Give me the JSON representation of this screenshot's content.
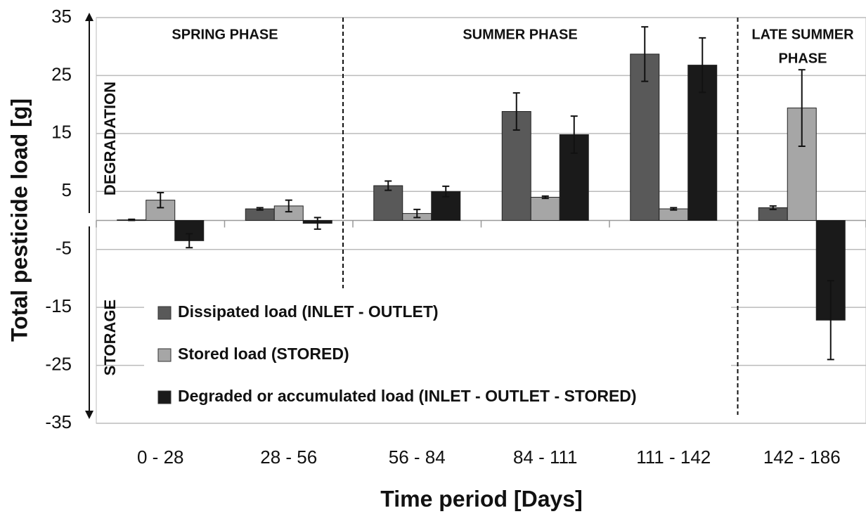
{
  "chart_data": {
    "type": "bar",
    "x_label": "Time period [Days]",
    "y_label": "Total pesticide load [g]",
    "categories": [
      "0 - 28",
      "28 - 56",
      "56 - 84",
      "84 - 111",
      "111  - 142",
      "142 - 186"
    ],
    "series": [
      {
        "name": "Dissipated load (INLET - OUTLET)",
        "color": "#595959",
        "values": [
          0.1,
          2,
          6,
          18.8,
          28.7,
          2.2
        ],
        "errors": [
          0.1,
          0.2,
          0.8,
          3.2,
          4.7,
          0.3
        ]
      },
      {
        "name": "Stored load (STORED)",
        "color": "#a6a6a6",
        "values": [
          3.5,
          2.5,
          1.2,
          4,
          2,
          19.4
        ],
        "errors": [
          1.3,
          1,
          0.7,
          0.2,
          0.2,
          6.6
        ]
      },
      {
        "name": "Degraded or accumulated load (INLET - OUTLET - STORED)",
        "color": "#1a1a1a",
        "values": [
          -3.5,
          -0.5,
          5,
          14.8,
          26.8,
          -17.2
        ],
        "errors": [
          1.2,
          1,
          0.9,
          3.2,
          4.7,
          6.8
        ]
      }
    ],
    "ylim": [
      -35,
      35
    ],
    "yticks": [
      -35,
      -25,
      -15,
      -5,
      5,
      15,
      25,
      35
    ],
    "grid": true,
    "phases": [
      {
        "lines": [
          "SPRING PHASE"
        ]
      },
      {
        "lines": [
          "SUMMER PHASE"
        ]
      },
      {
        "lines": [
          "LATE SUMMER",
          "PHASE"
        ]
      }
    ],
    "annotations": [
      "DEGRADATION",
      "STORAGE"
    ]
  }
}
